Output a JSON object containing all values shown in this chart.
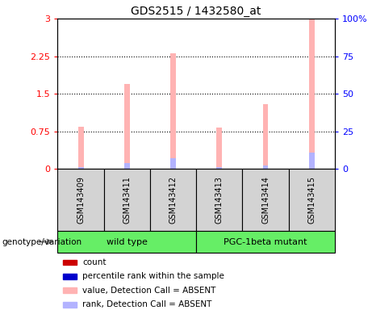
{
  "title": "GDS2515 / 1432580_at",
  "samples": [
    "GSM143409",
    "GSM143411",
    "GSM143412",
    "GSM143413",
    "GSM143414",
    "GSM143415"
  ],
  "pink_values": [
    0.85,
    1.7,
    2.3,
    0.82,
    1.3,
    3.0
  ],
  "blue_values": [
    0.04,
    0.12,
    0.22,
    0.04,
    0.07,
    0.32
  ],
  "left_ylim": [
    0,
    3
  ],
  "right_ylim": [
    0,
    100
  ],
  "left_yticks": [
    0,
    0.75,
    1.5,
    2.25,
    3
  ],
  "right_yticks": [
    0,
    25,
    50,
    75,
    100
  ],
  "left_yticklabels": [
    "0",
    "0.75",
    "1.5",
    "2.25",
    "3"
  ],
  "right_yticklabels": [
    "0",
    "25",
    "50",
    "75",
    "100%"
  ],
  "bar_width": 0.12,
  "pink_color": "#ffb3b3",
  "blue_color": "#b3b3ff",
  "sample_box_color": "#d3d3d3",
  "group_box_color": "#66ee66",
  "legend_items": [
    {
      "color": "#cc0000",
      "label": "count"
    },
    {
      "color": "#0000cc",
      "label": "percentile rank within the sample"
    },
    {
      "color": "#ffb3b3",
      "label": "value, Detection Call = ABSENT"
    },
    {
      "color": "#b3b3ff",
      "label": "rank, Detection Call = ABSENT"
    }
  ]
}
